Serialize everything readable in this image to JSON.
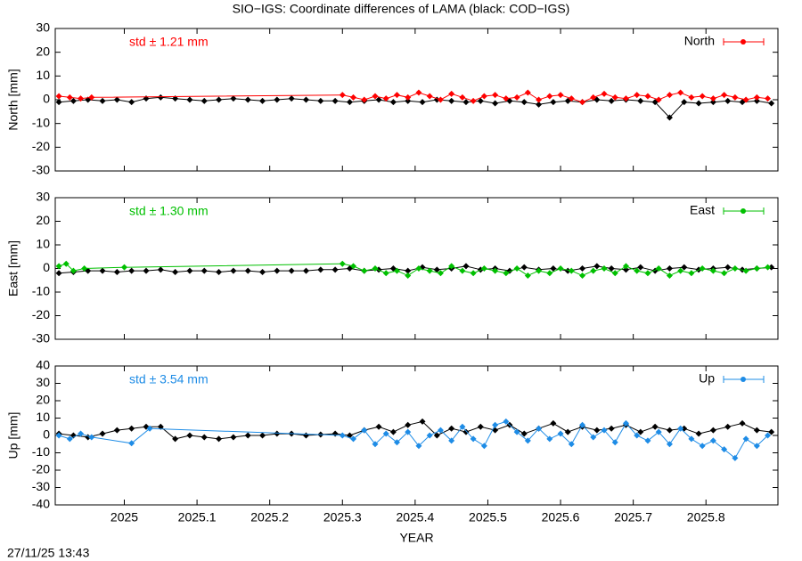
{
  "timestamp": "27/11/25 13:43",
  "chart_data": [
    {
      "type": "line",
      "title": "SIO−IGS: Coordinate differences of LAMA (black: COD−IGS)",
      "ylabel": "North [mm]",
      "annotation": "std ± 1.21 mm",
      "xlim": [
        2024.905,
        2025.899
      ],
      "xticks": [
        2025,
        2025.1,
        2025.2,
        2025.3,
        2025.4,
        2025.5,
        2025.6,
        2025.7,
        2025.8
      ],
      "ylim": [
        -30,
        30
      ],
      "yticks": [
        -30,
        -20,
        -10,
        0,
        10,
        20,
        30
      ],
      "series": [
        {
          "color": "#000000",
          "x": [
            2024.91,
            2024.93,
            2024.95,
            2024.97,
            2024.99,
            2025.01,
            2025.03,
            2025.05,
            2025.07,
            2025.09,
            2025.11,
            2025.13,
            2025.15,
            2025.17,
            2025.19,
            2025.21,
            2025.23,
            2025.25,
            2025.27,
            2025.29,
            2025.31,
            2025.33,
            2025.35,
            2025.37,
            2025.39,
            2025.41,
            2025.43,
            2025.45,
            2025.47,
            2025.49,
            2025.51,
            2025.53,
            2025.55,
            2025.57,
            2025.59,
            2025.61,
            2025.63,
            2025.65,
            2025.67,
            2025.69,
            2025.71,
            2025.73,
            2025.75,
            2025.77,
            2025.79,
            2025.81,
            2025.83,
            2025.85,
            2025.87,
            2025.89
          ],
          "values": [
            -1,
            -0.5,
            0,
            -0.5,
            0,
            -1,
            0.5,
            1,
            0.5,
            0,
            -0.5,
            0,
            0.5,
            0,
            -0.5,
            0,
            0.5,
            0,
            -0.5,
            -0.5,
            -1,
            -0.5,
            0,
            -1,
            -0.5,
            -1,
            0,
            -0.5,
            -1,
            -0.5,
            -1.5,
            -0.5,
            -1,
            -2,
            -1,
            -0.5,
            -1,
            0,
            -0.5,
            0,
            -0.5,
            -1,
            -7.5,
            -1,
            -1.5,
            -1,
            -0.5,
            -1,
            -0.5,
            -1.5
          ]
        },
        {
          "name": "North",
          "color": "#ff0000",
          "x": [
            2024.91,
            2024.925,
            2024.94,
            2024.955,
            2025.3,
            2025.315,
            2025.33,
            2025.345,
            2025.36,
            2025.375,
            2025.39,
            2025.405,
            2025.42,
            2025.435,
            2025.45,
            2025.465,
            2025.48,
            2025.495,
            2025.51,
            2025.525,
            2025.54,
            2025.555,
            2025.57,
            2025.585,
            2025.6,
            2025.615,
            2025.63,
            2025.645,
            2025.66,
            2025.675,
            2025.69,
            2025.705,
            2025.72,
            2025.735,
            2025.75,
            2025.765,
            2025.78,
            2025.795,
            2025.81,
            2025.825,
            2025.84,
            2025.855,
            2025.87,
            2025.885
          ],
          "values": [
            1.5,
            1,
            0.5,
            1,
            2,
            1,
            0,
            1.5,
            0.5,
            2,
            1,
            3,
            1.5,
            0,
            2.5,
            1,
            -0.5,
            1.5,
            2,
            0.5,
            1,
            3,
            0,
            1.5,
            2,
            0.5,
            -1,
            1,
            2.5,
            1,
            0.5,
            2,
            1.5,
            0,
            2,
            3,
            1,
            1.5,
            0.5,
            2,
            1,
            0,
            1,
            0.5
          ]
        }
      ]
    },
    {
      "type": "line",
      "ylabel": "East [mm]",
      "annotation": "std ± 1.30 mm",
      "xlim": [
        2024.905,
        2025.899
      ],
      "xticks": [
        2025,
        2025.1,
        2025.2,
        2025.3,
        2025.4,
        2025.5,
        2025.6,
        2025.7,
        2025.8
      ],
      "ylim": [
        -30,
        30
      ],
      "yticks": [
        -30,
        -20,
        -10,
        0,
        10,
        20,
        30
      ],
      "series": [
        {
          "color": "#000000",
          "x": [
            2024.91,
            2024.93,
            2024.95,
            2024.97,
            2024.99,
            2025.01,
            2025.03,
            2025.05,
            2025.07,
            2025.09,
            2025.11,
            2025.13,
            2025.15,
            2025.17,
            2025.19,
            2025.21,
            2025.23,
            2025.25,
            2025.27,
            2025.29,
            2025.31,
            2025.33,
            2025.35,
            2025.37,
            2025.39,
            2025.41,
            2025.43,
            2025.45,
            2025.47,
            2025.49,
            2025.51,
            2025.53,
            2025.55,
            2025.57,
            2025.59,
            2025.61,
            2025.63,
            2025.65,
            2025.67,
            2025.69,
            2025.71,
            2025.73,
            2025.75,
            2025.77,
            2025.79,
            2025.81,
            2025.83,
            2025.85,
            2025.87,
            2025.89
          ],
          "values": [
            -2,
            -1.5,
            -1,
            -1,
            -1.5,
            -1,
            -1,
            -0.5,
            -1.5,
            -1,
            -1,
            -1.5,
            -1,
            -1,
            -1.5,
            -1,
            -1,
            -1,
            -0.5,
            -0.5,
            0,
            -1,
            -0.5,
            0,
            -1,
            0.5,
            -0.5,
            0,
            1,
            -0.5,
            0,
            -1,
            0.5,
            -0.5,
            0,
            -1,
            0,
            1,
            0,
            -0.5,
            0.5,
            -1,
            0,
            0.5,
            -0.5,
            0,
            0.5,
            -0.5,
            0,
            0.5
          ]
        },
        {
          "name": "East",
          "color": "#00c000",
          "x": [
            2024.91,
            2024.92,
            2024.93,
            2024.945,
            2025,
            2025.3,
            2025.315,
            2025.33,
            2025.345,
            2025.36,
            2025.375,
            2025.39,
            2025.405,
            2025.42,
            2025.435,
            2025.45,
            2025.465,
            2025.48,
            2025.495,
            2025.51,
            2025.525,
            2025.54,
            2025.555,
            2025.57,
            2025.585,
            2025.6,
            2025.615,
            2025.63,
            2025.645,
            2025.66,
            2025.675,
            2025.69,
            2025.705,
            2025.72,
            2025.735,
            2025.75,
            2025.765,
            2025.78,
            2025.795,
            2025.81,
            2025.825,
            2025.84,
            2025.855,
            2025.87,
            2025.885
          ],
          "values": [
            1,
            2,
            -1,
            0,
            0.5,
            2,
            1,
            -1,
            0,
            -2,
            -1,
            -3,
            0,
            -1,
            -2,
            1,
            -1,
            -2,
            0,
            -1,
            -2,
            0,
            -3,
            -1,
            -2,
            0,
            -1,
            -3,
            -1,
            0,
            -2,
            1,
            -1,
            -2,
            0,
            -3,
            -1,
            -2,
            0,
            -1,
            -2,
            0,
            -1,
            0,
            0.5
          ]
        }
      ]
    },
    {
      "type": "line",
      "ylabel": "Up [mm]",
      "xlabel": "YEAR",
      "annotation": "std ± 3.54 mm",
      "xlim": [
        2024.905,
        2025.899
      ],
      "xticks": [
        2025,
        2025.1,
        2025.2,
        2025.3,
        2025.4,
        2025.5,
        2025.6,
        2025.7,
        2025.8
      ],
      "ylim": [
        -40,
        40
      ],
      "yticks": [
        -40,
        -30,
        -20,
        -10,
        0,
        10,
        20,
        30,
        40
      ],
      "series": [
        {
          "color": "#000000",
          "x": [
            2024.91,
            2024.93,
            2024.95,
            2024.97,
            2024.99,
            2025.01,
            2025.03,
            2025.05,
            2025.07,
            2025.09,
            2025.11,
            2025.13,
            2025.15,
            2025.17,
            2025.19,
            2025.21,
            2025.23,
            2025.25,
            2025.27,
            2025.29,
            2025.31,
            2025.33,
            2025.35,
            2025.37,
            2025.39,
            2025.41,
            2025.43,
            2025.45,
            2025.47,
            2025.49,
            2025.51,
            2025.53,
            2025.55,
            2025.57,
            2025.59,
            2025.61,
            2025.63,
            2025.65,
            2025.67,
            2025.69,
            2025.71,
            2025.73,
            2025.75,
            2025.77,
            2025.79,
            2025.81,
            2025.83,
            2025.85,
            2025.87,
            2025.89
          ],
          "values": [
            1,
            0,
            -1,
            1,
            3,
            4,
            5,
            5,
            -2,
            0,
            -1,
            -2,
            -1,
            0,
            0,
            1,
            1,
            0,
            0.5,
            1,
            0,
            3,
            5,
            2,
            6,
            8,
            0,
            4,
            2,
            5,
            3,
            6,
            1,
            4,
            7,
            2,
            5,
            3,
            4,
            6,
            2,
            5,
            3,
            4,
            1,
            3,
            5,
            7,
            3,
            2
          ]
        },
        {
          "name": "Up",
          "color": "#1e8ce6",
          "x": [
            2024.91,
            2024.925,
            2024.94,
            2024.955,
            2025.01,
            2025.035,
            2025.3,
            2025.315,
            2025.33,
            2025.345,
            2025.36,
            2025.375,
            2025.39,
            2025.405,
            2025.42,
            2025.435,
            2025.45,
            2025.465,
            2025.48,
            2025.495,
            2025.51,
            2025.525,
            2025.54,
            2025.555,
            2025.57,
            2025.585,
            2025.6,
            2025.615,
            2025.63,
            2025.645,
            2025.66,
            2025.675,
            2025.69,
            2025.705,
            2025.72,
            2025.735,
            2025.75,
            2025.765,
            2025.78,
            2025.795,
            2025.81,
            2025.825,
            2025.84,
            2025.855,
            2025.87,
            2025.885
          ],
          "values": [
            0,
            -2,
            1,
            -1,
            -4.5,
            4,
            0,
            -2,
            3,
            -5,
            1,
            -4,
            2,
            -6,
            0,
            3,
            -3,
            5,
            -2,
            -6,
            6,
            8,
            2,
            -3,
            4,
            -2,
            1,
            -5,
            6,
            -1,
            3,
            -4,
            7,
            0,
            -3,
            2,
            -5,
            4,
            -2,
            -6,
            -3,
            -8,
            -13,
            -2,
            -6,
            0
          ]
        }
      ]
    }
  ]
}
